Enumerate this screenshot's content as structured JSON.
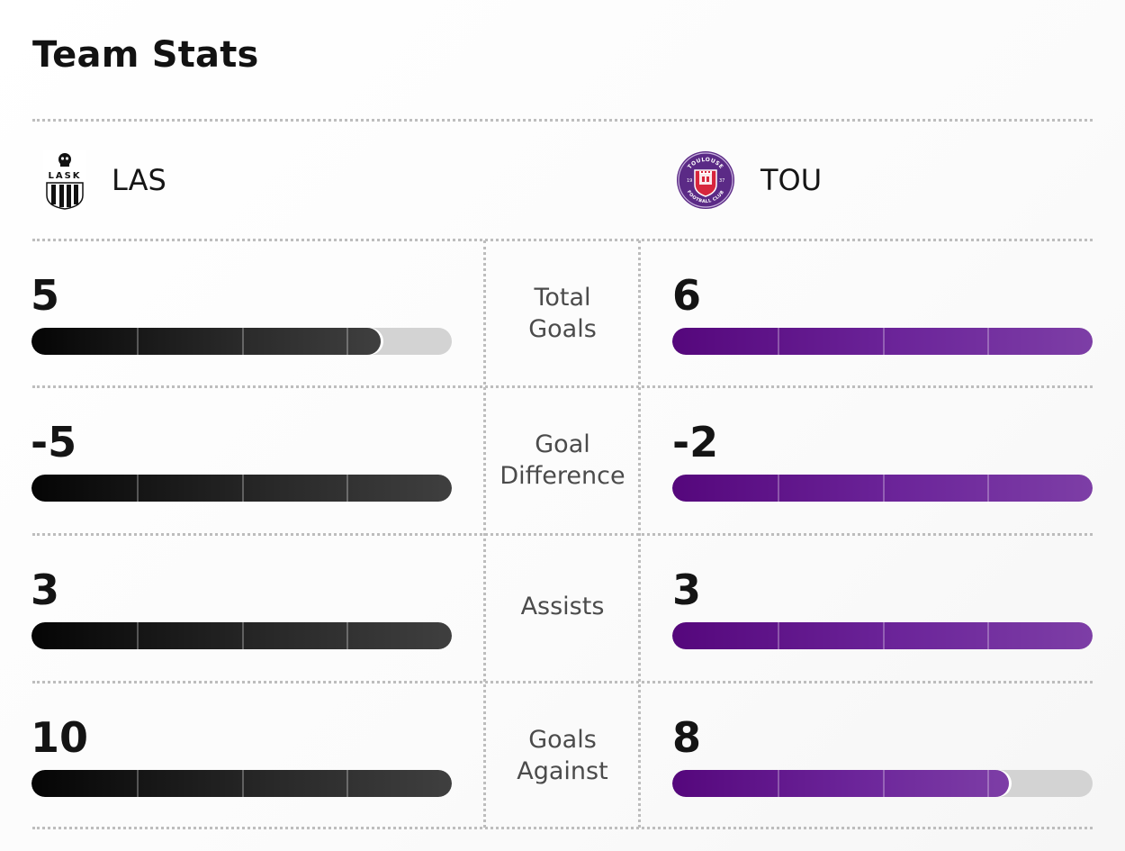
{
  "title": "Team Stats",
  "teams": {
    "home": {
      "abbr": "LAS",
      "logo_text": "LASK",
      "color": "#111111"
    },
    "away": {
      "abbr": "TOU",
      "logo_text": "TOULOUSE FOOTBALL CLUB",
      "logo_year_left": "19",
      "logo_year_right": "37",
      "color": "#5e1786"
    }
  },
  "stats": [
    {
      "label_line1": "Total",
      "label_line2": "Goals",
      "home_value": "5",
      "away_value": "6",
      "home_fill_pct": 83,
      "away_fill_pct": 100
    },
    {
      "label_line1": "Goal",
      "label_line2": "Difference",
      "home_value": "-5",
      "away_value": "-2",
      "home_fill_pct": 100,
      "away_fill_pct": 100
    },
    {
      "label_line1": "Assists",
      "label_line2": "",
      "home_value": "3",
      "away_value": "3",
      "home_fill_pct": 100,
      "away_fill_pct": 100
    },
    {
      "label_line1": "Goals",
      "label_line2": "Against",
      "home_value": "10",
      "away_value": "8",
      "home_fill_pct": 100,
      "away_fill_pct": 80
    }
  ]
}
